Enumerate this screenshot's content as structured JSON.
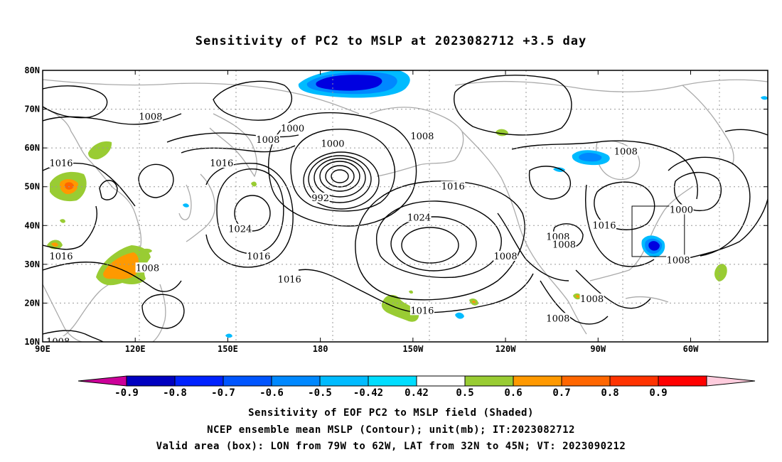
{
  "title": "Sensitivity of PC2 to MSLP at 2023082712 +3.5 day",
  "map": {
    "lon_range": [
      "90E",
      "35W"
    ],
    "lat_range": [
      "10N",
      "80N"
    ],
    "lat_ticks": [
      "80N",
      "70N",
      "60N",
      "50N",
      "40N",
      "30N",
      "20N",
      "10N"
    ],
    "lon_ticks": [
      "90E",
      "120E",
      "150E",
      "180",
      "150W",
      "120W",
      "90W",
      "60W"
    ],
    "gridlines": "dotted",
    "valid_box": {
      "lon": [
        -79,
        -62
      ],
      "lat": [
        32,
        45
      ]
    },
    "contour_labels": [
      {
        "text": "1008",
        "lon": 125,
        "lat": 68
      },
      {
        "text": "1016",
        "lon": 96,
        "lat": 56
      },
      {
        "text": "1016",
        "lon": 96,
        "lat": 32
      },
      {
        "text": "1008",
        "lon": 124,
        "lat": 29
      },
      {
        "text": "1008",
        "lon": 95,
        "lat": 10
      },
      {
        "text": "1016",
        "lon": 148,
        "lat": 56
      },
      {
        "text": "1024",
        "lon": 154,
        "lat": 39
      },
      {
        "text": "1016",
        "lon": 160,
        "lat": 32
      },
      {
        "text": "1016",
        "lon": 170,
        "lat": 26
      },
      {
        "text": "1008",
        "lon": 163,
        "lat": 62
      },
      {
        "text": "1000",
        "lon": 171,
        "lat": 65
      },
      {
        "text": "1000",
        "lon": 184,
        "lat": 61
      },
      {
        "text": "992",
        "lon": 180,
        "lat": 47
      },
      {
        "text": "1008",
        "lon": 213,
        "lat": 63
      },
      {
        "text": "1016",
        "lon": 223,
        "lat": 50
      },
      {
        "text": "1024",
        "lon": 212,
        "lat": 42
      },
      {
        "text": "1016",
        "lon": 213,
        "lat": 18
      },
      {
        "text": "1008",
        "lon": 240,
        "lat": 32
      },
      {
        "text": "1008",
        "lon": 257,
        "lat": 37
      },
      {
        "text": "1008",
        "lon": 259,
        "lat": 35
      },
      {
        "text": "1016",
        "lon": 272,
        "lat": 40
      },
      {
        "text": "1008",
        "lon": 279,
        "lat": 59
      },
      {
        "text": "1000",
        "lon": 297,
        "lat": 44
      },
      {
        "text": "1008",
        "lon": 296,
        "lat": 31
      },
      {
        "text": "1008",
        "lon": 268,
        "lat": 21
      },
      {
        "text": "1008",
        "lon": 257,
        "lat": 16
      }
    ]
  },
  "colorbar": {
    "labels": [
      "-0.9",
      "-0.8",
      "-0.7",
      "-0.6",
      "-0.5",
      "-0.42",
      "0.42",
      "0.5",
      "0.6",
      "0.7",
      "0.8",
      "0.9"
    ],
    "colors": [
      "#cc0099",
      "#0000c0",
      "#0022ff",
      "#0055ff",
      "#0088ff",
      "#00bbff",
      "#00ddff",
      "#ffffff",
      "#99cc33",
      "#ff9900",
      "#ff6600",
      "#ff3300",
      "#ff0000",
      "#ffccdd"
    ]
  },
  "footer": {
    "line1": "Sensitivity of EOF PC2 to MSLP field (Shaded)",
    "line2": "NCEP ensemble mean MSLP (Contour); unit(mb); IT:2023082712",
    "line3": "Valid area (box): LON from 79W to 62W, LAT from 32N to 45N; VT: 2023090212"
  }
}
